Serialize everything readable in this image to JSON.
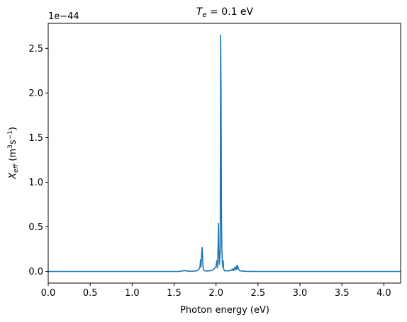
{
  "chart_data": {
    "type": "line",
    "title_main": "T",
    "title_sub": "e",
    "title_rest": " = 0.1 eV",
    "xlabel": "Photon energy (eV)",
    "ylabel_main": "X",
    "ylabel_sub": "eff",
    "ylabel_rest_1": " (m",
    "ylabel_sup_1": "3",
    "ylabel_rest_2": "s",
    "ylabel_sup_2": "−1",
    "ylabel_rest_3": ")",
    "offset_label": "1e−44",
    "xlim": [
      0.0,
      4.2
    ],
    "ylim": [
      -0.13,
      2.78
    ],
    "xticks": [
      0.0,
      0.5,
      1.0,
      1.5,
      2.0,
      2.5,
      3.0,
      3.5,
      4.0
    ],
    "xtick_labels": [
      "0.0",
      "0.5",
      "1.0",
      "1.5",
      "2.0",
      "2.5",
      "3.0",
      "3.5",
      "4.0"
    ],
    "yticks": [
      0.0,
      0.5,
      1.0,
      1.5,
      2.0,
      2.5
    ],
    "ytick_labels": [
      "0.0",
      "0.5",
      "1.0",
      "1.5",
      "2.0",
      "2.5"
    ],
    "grid": false,
    "line_color": "#1f77b4",
    "series": [
      {
        "x": [
          0.0,
          1.55,
          1.6,
          1.62,
          1.64,
          1.66,
          1.7,
          1.75,
          1.78,
          1.8,
          1.81,
          1.815,
          1.82,
          1.825,
          1.83,
          1.835,
          1.84,
          1.845,
          1.85,
          1.86,
          1.88,
          1.9,
          1.95,
          1.98,
          2.0,
          2.01,
          2.015,
          2.02,
          2.025,
          2.03,
          2.035,
          2.04,
          2.045,
          2.05,
          2.055,
          2.06,
          2.065,
          2.07,
          2.075,
          2.08,
          2.085,
          2.09,
          2.1,
          2.11,
          2.13,
          2.15,
          2.17,
          2.18,
          2.19,
          2.2,
          2.21,
          2.22,
          2.23,
          2.235,
          2.24,
          2.245,
          2.25,
          2.255,
          2.26,
          2.265,
          2.27,
          2.28,
          2.3,
          2.35,
          2.4,
          2.5,
          4.2
        ],
        "y": [
          0.0,
          0.0,
          0.005,
          0.01,
          0.008,
          0.004,
          0.002,
          0.005,
          0.01,
          0.03,
          0.06,
          0.13,
          0.05,
          0.12,
          0.22,
          0.27,
          0.18,
          0.05,
          0.02,
          0.01,
          0.005,
          0.005,
          0.01,
          0.03,
          0.06,
          0.12,
          0.04,
          0.1,
          0.3,
          0.54,
          0.2,
          0.08,
          0.15,
          0.25,
          2.65,
          2.0,
          0.6,
          0.25,
          0.1,
          0.05,
          0.12,
          0.03,
          0.01,
          0.005,
          0.01,
          0.005,
          0.01,
          0.02,
          0.01,
          0.03,
          0.01,
          0.04,
          0.02,
          0.05,
          0.02,
          0.06,
          0.03,
          0.07,
          0.05,
          0.04,
          0.02,
          0.01,
          0.005,
          0.002,
          0.001,
          0.0,
          0.0
        ]
      }
    ]
  }
}
